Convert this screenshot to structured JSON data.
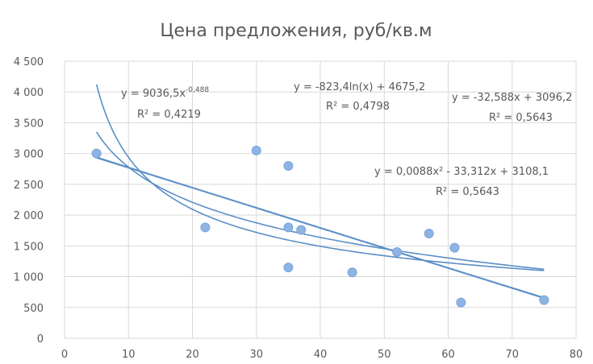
{
  "chart_data": {
    "type": "scatter",
    "title": "Цена предложения, руб/кв.м",
    "xlabel": "",
    "ylabel": "",
    "xlim": [
      0,
      80
    ],
    "ylim": [
      0,
      4500
    ],
    "x_ticks": [
      0,
      10,
      20,
      30,
      40,
      50,
      60,
      70,
      80
    ],
    "y_ticks": [
      0,
      500,
      1000,
      1500,
      2000,
      2500,
      3000,
      3500,
      4000,
      4500
    ],
    "x_tick_labels": [
      "0",
      "10",
      "20",
      "30",
      "40",
      "50",
      "60",
      "70",
      "80"
    ],
    "y_tick_labels": [
      "0",
      "500",
      "1 000",
      "1 500",
      "2 000",
      "2 500",
      "3 000",
      "3 500",
      "4 000",
      "4 500"
    ],
    "grid": true,
    "legend": "none",
    "series": [
      {
        "points": [
          {
            "x": 5,
            "y": 3000
          },
          {
            "x": 22,
            "y": 1800
          },
          {
            "x": 30,
            "y": 3050
          },
          {
            "x": 35,
            "y": 2800
          },
          {
            "x": 35,
            "y": 1800
          },
          {
            "x": 35,
            "y": 1150
          },
          {
            "x": 37,
            "y": 1760
          },
          {
            "x": 45,
            "y": 1070
          },
          {
            "x": 52,
            "y": 1400
          },
          {
            "x": 57,
            "y": 1700
          },
          {
            "x": 61,
            "y": 1470
          },
          {
            "x": 62,
            "y": 580
          },
          {
            "x": 75,
            "y": 620
          }
        ]
      }
    ],
    "trendlines": [
      {
        "kind": "power",
        "a": 9036.5,
        "b": -0.488,
        "x_range": [
          5,
          75
        ],
        "equation": "y = 9036,5x",
        "exponent": "-0,488",
        "r2_label": "R² = 0,4219"
      },
      {
        "kind": "log",
        "a": -823.4,
        "b": 4675.2,
        "x_range": [
          5,
          75
        ],
        "equation": "y = -823,4ln(x) + 4675,2",
        "r2_label": "R² = 0,4798"
      },
      {
        "kind": "linear",
        "a": -32.588,
        "b": 3096.2,
        "x_range": [
          5,
          75
        ],
        "equation": "y = -32,588x + 3096,2",
        "r2_label": "R² = 0,5643"
      },
      {
        "kind": "poly2",
        "a": 0.0088,
        "b": -33.312,
        "c": 3108.1,
        "x_range": [
          5,
          75
        ],
        "equation": "y = 0,0088x² - 33,312x + 3108,1",
        "r2_label": "R² = 0,5643"
      }
    ],
    "colors": {
      "point": "#8eb4e3",
      "trend": "#5b8fc7",
      "grid": "#d9d9d9",
      "text": "#595959",
      "plot_bg": "#ffffff"
    }
  }
}
